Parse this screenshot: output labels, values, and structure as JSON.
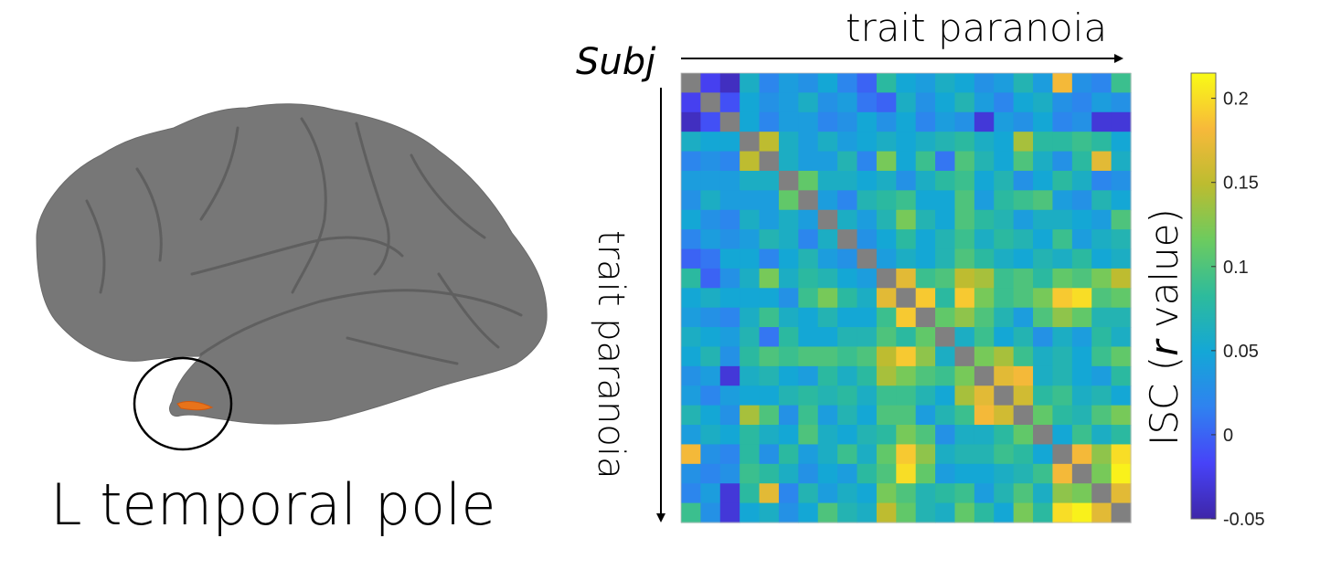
{
  "figure": {
    "region_label": "L temporal pole",
    "top_axis_label": "trait paranoia",
    "left_axis_label": "trait paranoia",
    "subj_label": "Subj",
    "colorbar_label_prefix": "ISC (",
    "colorbar_label_italic": "r",
    "colorbar_label_suffix": " value)"
  },
  "colors": {
    "diagonal": "#808080",
    "brain_surface": "#777777",
    "highlight": "#e8731a",
    "colormap": [
      "#3e26a8",
      "#4743f8",
      "#2f82f0",
      "#14a7d6",
      "#2dbb9c",
      "#6ccb5f",
      "#bcbc30",
      "#f7b93a",
      "#f9fb15"
    ]
  },
  "chart_data": {
    "type": "heatmap",
    "colorbar_label": "ISC (r value)",
    "colorbar_range": [
      -0.05,
      0.215
    ],
    "colorbar_ticks": [
      -0.05,
      0,
      0.05,
      0.1,
      0.15,
      0.2
    ],
    "colorbar_tick_labels": [
      "-0.05",
      "0",
      "0.05",
      "0.1",
      "0.15",
      "0.2"
    ],
    "diagonal": "undefined",
    "values": [
      [
        null,
        -0.02,
        -0.04,
        0.06,
        0.02,
        0.04,
        0.03,
        0.05,
        0.02,
        0.0,
        0.08,
        0.05,
        0.04,
        0.06,
        0.05,
        0.03,
        0.04,
        0.07,
        0.04,
        0.18,
        0.03,
        0.02,
        0.09
      ],
      [
        -0.02,
        null,
        -0.01,
        0.05,
        0.03,
        0.04,
        0.06,
        0.03,
        0.04,
        0.01,
        0.0,
        0.06,
        0.03,
        0.05,
        0.07,
        0.04,
        0.02,
        0.05,
        0.06,
        0.03,
        0.02,
        0.04,
        0.03
      ],
      [
        -0.04,
        -0.01,
        null,
        0.05,
        0.02,
        0.04,
        0.04,
        0.02,
        0.03,
        0.05,
        0.03,
        0.05,
        0.02,
        0.04,
        0.03,
        -0.03,
        0.04,
        0.03,
        0.05,
        0.02,
        0.03,
        -0.03,
        -0.03
      ],
      [
        0.06,
        0.05,
        0.05,
        null,
        0.15,
        0.06,
        0.04,
        0.06,
        0.04,
        0.05,
        0.06,
        0.05,
        0.06,
        0.07,
        0.08,
        0.06,
        0.05,
        0.14,
        0.08,
        0.08,
        0.09,
        0.08,
        0.05
      ],
      [
        0.02,
        0.03,
        0.02,
        0.15,
        null,
        0.06,
        0.04,
        0.04,
        0.07,
        0.02,
        0.12,
        0.05,
        0.09,
        0.01,
        0.1,
        0.07,
        0.05,
        0.1,
        0.06,
        0.03,
        0.08,
        0.17,
        0.06
      ],
      [
        0.04,
        0.04,
        0.04,
        0.06,
        0.06,
        null,
        0.11,
        0.06,
        0.06,
        0.05,
        0.06,
        0.03,
        0.06,
        0.08,
        0.09,
        0.05,
        0.07,
        0.03,
        0.05,
        0.08,
        0.06,
        0.02,
        0.03
      ],
      [
        0.03,
        0.06,
        0.04,
        0.04,
        0.04,
        0.11,
        null,
        0.04,
        0.02,
        0.07,
        0.08,
        0.09,
        0.05,
        0.05,
        0.1,
        0.04,
        0.08,
        0.09,
        0.1,
        0.04,
        0.03,
        0.07,
        0.05
      ],
      [
        0.05,
        0.03,
        0.02,
        0.06,
        0.04,
        0.06,
        0.04,
        null,
        0.06,
        0.04,
        0.07,
        0.12,
        0.07,
        0.05,
        0.1,
        0.08,
        0.07,
        0.04,
        0.06,
        0.06,
        0.05,
        0.04,
        0.1
      ],
      [
        0.02,
        0.04,
        0.03,
        0.04,
        0.07,
        0.06,
        0.02,
        0.06,
        null,
        0.03,
        0.05,
        0.08,
        0.05,
        0.07,
        0.09,
        0.06,
        0.08,
        0.07,
        0.05,
        0.09,
        0.04,
        0.06,
        0.07
      ],
      [
        0.0,
        0.01,
        0.05,
        0.05,
        0.02,
        0.05,
        0.07,
        0.04,
        0.03,
        null,
        0.04,
        0.06,
        0.05,
        0.07,
        0.1,
        0.08,
        0.06,
        0.05,
        0.07,
        0.06,
        0.08,
        0.05,
        0.06
      ],
      [
        0.08,
        0.0,
        0.03,
        0.06,
        0.12,
        0.06,
        0.08,
        0.07,
        0.05,
        0.04,
        null,
        0.17,
        0.09,
        0.1,
        0.15,
        0.14,
        0.09,
        0.1,
        0.08,
        0.11,
        0.1,
        0.12,
        0.15
      ],
      [
        0.05,
        0.06,
        0.05,
        0.05,
        0.05,
        0.03,
        0.09,
        0.12,
        0.08,
        0.06,
        0.17,
        null,
        0.19,
        0.08,
        0.19,
        0.12,
        0.09,
        0.1,
        0.12,
        0.19,
        0.2,
        0.1,
        0.11
      ],
      [
        0.04,
        0.03,
        0.02,
        0.06,
        0.09,
        0.06,
        0.05,
        0.07,
        0.05,
        0.05,
        0.09,
        0.19,
        null,
        0.11,
        0.13,
        0.1,
        0.07,
        0.04,
        0.1,
        0.13,
        0.11,
        0.07,
        0.07
      ],
      [
        0.06,
        0.05,
        0.04,
        0.07,
        0.01,
        0.08,
        0.05,
        0.05,
        0.07,
        0.07,
        0.1,
        0.08,
        0.11,
        null,
        0.06,
        0.09,
        0.05,
        0.07,
        0.03,
        0.06,
        0.04,
        0.08,
        0.06
      ],
      [
        0.05,
        0.07,
        0.03,
        0.08,
        0.1,
        0.09,
        0.1,
        0.1,
        0.09,
        0.1,
        0.15,
        0.19,
        0.13,
        0.06,
        null,
        0.12,
        0.14,
        0.09,
        0.06,
        0.07,
        0.05,
        0.09,
        0.11
      ],
      [
        0.03,
        0.04,
        -0.03,
        0.06,
        0.07,
        0.05,
        0.04,
        0.08,
        0.06,
        0.08,
        0.14,
        0.12,
        0.1,
        0.09,
        0.12,
        null,
        0.17,
        0.18,
        0.06,
        0.07,
        0.05,
        0.04,
        0.08
      ],
      [
        0.04,
        0.02,
        0.04,
        0.05,
        0.05,
        0.07,
        0.08,
        0.07,
        0.08,
        0.06,
        0.09,
        0.09,
        0.07,
        0.05,
        0.14,
        0.17,
        null,
        0.16,
        0.08,
        0.09,
        0.06,
        0.07,
        0.05
      ],
      [
        0.07,
        0.05,
        0.03,
        0.14,
        0.1,
        0.03,
        0.09,
        0.04,
        0.07,
        0.05,
        0.1,
        0.1,
        0.04,
        0.07,
        0.09,
        0.18,
        0.16,
        null,
        0.11,
        0.08,
        0.07,
        0.1,
        0.12
      ],
      [
        0.04,
        0.06,
        0.05,
        0.08,
        0.06,
        0.05,
        0.1,
        0.06,
        0.05,
        0.07,
        0.08,
        0.12,
        0.1,
        0.03,
        0.06,
        0.06,
        0.08,
        0.11,
        null,
        0.05,
        0.09,
        0.06,
        0.08
      ],
      [
        0.18,
        0.03,
        0.02,
        0.08,
        0.03,
        0.08,
        0.04,
        0.06,
        0.09,
        0.06,
        0.11,
        0.19,
        0.13,
        0.06,
        0.07,
        0.07,
        0.09,
        0.08,
        0.05,
        null,
        0.18,
        0.13,
        0.2
      ],
      [
        0.03,
        0.02,
        0.03,
        0.09,
        0.08,
        0.06,
        0.03,
        0.05,
        0.04,
        0.08,
        0.1,
        0.2,
        0.11,
        0.04,
        0.05,
        0.05,
        0.06,
        0.07,
        0.09,
        0.18,
        null,
        0.12,
        0.21
      ],
      [
        0.02,
        0.04,
        -0.03,
        0.08,
        0.17,
        0.02,
        0.07,
        0.04,
        0.06,
        0.05,
        0.12,
        0.1,
        0.07,
        0.08,
        0.09,
        0.04,
        0.07,
        0.1,
        0.06,
        0.13,
        0.12,
        null,
        0.17
      ],
      [
        0.09,
        0.03,
        -0.03,
        0.05,
        0.06,
        0.03,
        0.05,
        0.1,
        0.07,
        0.06,
        0.15,
        0.11,
        0.07,
        0.06,
        0.11,
        0.08,
        0.05,
        0.12,
        0.08,
        0.2,
        0.21,
        0.17,
        null
      ]
    ]
  }
}
